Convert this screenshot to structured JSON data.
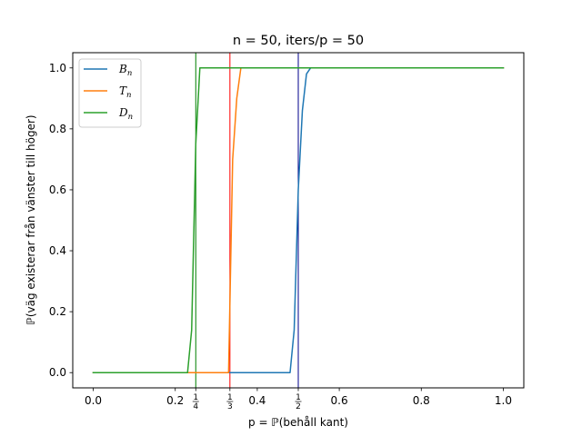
{
  "chart_data": {
    "type": "line",
    "title": "n = 50, iters/p = 50",
    "xlabel": "p = ℙ(behåll kant)",
    "ylabel": "ℙ(väg existerar från vänster till höger)",
    "xlim": [
      -0.05,
      1.05
    ],
    "ylim": [
      -0.05,
      1.05
    ],
    "xticks": [
      {
        "value": 0.0,
        "label": "0.0"
      },
      {
        "value": 0.2,
        "label": "0.2"
      },
      {
        "value": 0.4,
        "label": "0.4"
      },
      {
        "value": 0.6,
        "label": "0.6"
      },
      {
        "value": 0.8,
        "label": "0.8"
      },
      {
        "value": 1.0,
        "label": "1.0"
      }
    ],
    "frac_ticks": [
      {
        "value": 0.25,
        "num": "1",
        "den": "4"
      },
      {
        "value": 0.3333,
        "num": "1",
        "den": "3"
      },
      {
        "value": 0.5,
        "num": "1",
        "den": "2"
      }
    ],
    "yticks": [
      {
        "value": 0.0,
        "label": "0.0"
      },
      {
        "value": 0.2,
        "label": "0.2"
      },
      {
        "value": 0.4,
        "label": "0.4"
      },
      {
        "value": 0.6,
        "label": "0.6"
      },
      {
        "value": 0.8,
        "label": "0.8"
      },
      {
        "value": 1.0,
        "label": "1.0"
      }
    ],
    "vlines": [
      {
        "x": 0.25,
        "color": "#008000"
      },
      {
        "x": 0.3333,
        "color": "#ff0000"
      },
      {
        "x": 0.5,
        "color": "#00008b"
      }
    ],
    "legend_placement": "upper-left",
    "grid": false,
    "series": [
      {
        "name": "B",
        "subscript": "n",
        "color": "#1f77b4",
        "x": [
          0.0,
          0.47,
          0.48,
          0.49,
          0.5,
          0.51,
          0.52,
          0.53,
          0.54,
          1.0
        ],
        "y": [
          0.0,
          0.0,
          0.0,
          0.14,
          0.6,
          0.86,
          0.98,
          1.0,
          1.0,
          1.0
        ]
      },
      {
        "name": "T",
        "subscript": "n",
        "color": "#ff7f0e",
        "x": [
          0.0,
          0.32,
          0.33,
          0.34,
          0.35,
          0.36,
          0.37,
          1.0
        ],
        "y": [
          0.0,
          0.0,
          0.0,
          0.7,
          0.9,
          1.0,
          1.0,
          1.0
        ]
      },
      {
        "name": "D",
        "subscript": "n",
        "color": "#2ca02c",
        "x": [
          0.0,
          0.23,
          0.24,
          0.25,
          0.26,
          0.27,
          1.0
        ],
        "y": [
          0.0,
          0.0,
          0.14,
          0.75,
          1.0,
          1.0,
          1.0
        ]
      }
    ]
  }
}
